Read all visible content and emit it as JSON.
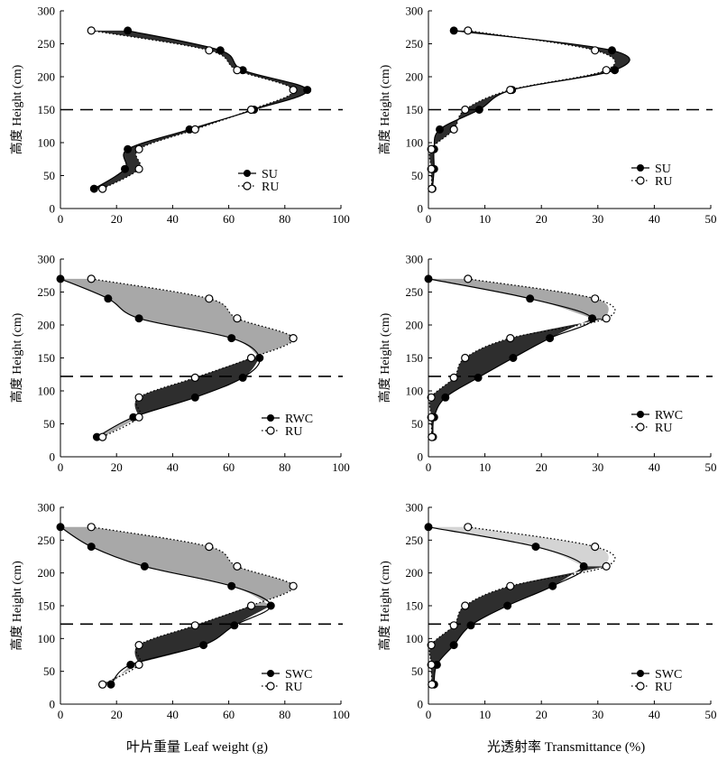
{
  "figure": {
    "xlabel_left": "叶片重量 Leaf weight (g)",
    "xlabel_right": "光透射率 Transmittance (%)"
  },
  "chart_data": [
    {
      "type": "line",
      "id": "lw-su",
      "ylabel": "高度 Height (cm)",
      "xlim": [
        0,
        100
      ],
      "ylim": [
        0,
        300
      ],
      "xticks": [
        0,
        20,
        40,
        60,
        80,
        100
      ],
      "yticks": [
        0,
        50,
        100,
        150,
        200,
        250,
        300
      ],
      "hline": 150,
      "fill_color": "#2e2e2e",
      "series": [
        {
          "name": "SU",
          "marker": "filled",
          "line": "solid",
          "points": [
            [
              24,
              270
            ],
            [
              57,
              240
            ],
            [
              65,
              210
            ],
            [
              88,
              180
            ],
            [
              69,
              150
            ],
            [
              46,
              120
            ],
            [
              24,
              90
            ],
            [
              23,
              60
            ],
            [
              12,
              30
            ]
          ]
        },
        {
          "name": "RU",
          "marker": "open",
          "line": "dotted",
          "points": [
            [
              11,
              270
            ],
            [
              53,
              240
            ],
            [
              63,
              210
            ],
            [
              83,
              180
            ],
            [
              68,
              150
            ],
            [
              48,
              120
            ],
            [
              28,
              90
            ],
            [
              28,
              60
            ],
            [
              15,
              30
            ]
          ]
        }
      ]
    },
    {
      "type": "line",
      "id": "tr-su",
      "ylabel": "高度 Height (cm)",
      "xlim": [
        0,
        50
      ],
      "ylim": [
        0,
        300
      ],
      "xticks": [
        0,
        10,
        20,
        30,
        40,
        50
      ],
      "yticks": [
        0,
        50,
        100,
        150,
        200,
        250,
        300
      ],
      "hline": 150,
      "fill_color": "#2e2e2e",
      "series": [
        {
          "name": "SU",
          "marker": "filled",
          "line": "solid",
          "points": [
            [
              4.5,
              270
            ],
            [
              32.5,
              240
            ],
            [
              33,
              210
            ],
            [
              14.8,
              180
            ],
            [
              9,
              150
            ],
            [
              2,
              120
            ],
            [
              1,
              90
            ],
            [
              1,
              60
            ],
            [
              0.7,
              30
            ]
          ]
        },
        {
          "name": "RU",
          "marker": "open",
          "line": "dotted",
          "points": [
            [
              7,
              270
            ],
            [
              29.5,
              240
            ],
            [
              31.5,
              210
            ],
            [
              14.5,
              180
            ],
            [
              6.5,
              150
            ],
            [
              4.5,
              120
            ],
            [
              0.5,
              90
            ],
            [
              0.5,
              60
            ],
            [
              0.6,
              30
            ]
          ]
        }
      ]
    },
    {
      "type": "line",
      "id": "lw-rwc",
      "ylabel": "高度 Height (cm)",
      "xlim": [
        0,
        100
      ],
      "ylim": [
        0,
        300
      ],
      "xticks": [
        0,
        20,
        40,
        60,
        80,
        100
      ],
      "yticks": [
        0,
        50,
        100,
        150,
        200,
        250,
        300
      ],
      "hline": 122,
      "fill_color": "#2e2e2e",
      "series": [
        {
          "name": "RWC",
          "marker": "filled",
          "line": "solid",
          "points": [
            [
              0,
              270
            ],
            [
              17,
              240
            ],
            [
              28,
              210
            ],
            [
              61,
              180
            ],
            [
              71,
              150
            ],
            [
              65,
              120
            ],
            [
              48,
              90
            ],
            [
              26,
              60
            ],
            [
              13,
              30
            ]
          ]
        },
        {
          "name": "RU",
          "marker": "open",
          "line": "dotted",
          "points": [
            [
              11,
              270
            ],
            [
              53,
              240
            ],
            [
              63,
              210
            ],
            [
              83,
              180
            ],
            [
              68,
              150
            ],
            [
              48,
              120
            ],
            [
              28,
              90
            ],
            [
              28,
              60
            ],
            [
              15,
              30
            ]
          ]
        }
      ]
    },
    {
      "type": "line",
      "id": "tr-rwc",
      "ylabel": "高度 Height (cm)",
      "xlim": [
        0,
        50
      ],
      "ylim": [
        0,
        300
      ],
      "xticks": [
        0,
        10,
        20,
        30,
        40,
        50
      ],
      "yticks": [
        0,
        50,
        100,
        150,
        200,
        250,
        300
      ],
      "hline": 122,
      "fill_color": "#2e2e2e",
      "series": [
        {
          "name": "RWC",
          "marker": "filled",
          "line": "solid",
          "points": [
            [
              0,
              270
            ],
            [
              18,
              240
            ],
            [
              29,
              210
            ],
            [
              21.5,
              180
            ],
            [
              15,
              150
            ],
            [
              8.8,
              120
            ],
            [
              3,
              90
            ],
            [
              1,
              60
            ],
            [
              0.8,
              30
            ]
          ]
        },
        {
          "name": "RU",
          "marker": "open",
          "line": "dotted",
          "points": [
            [
              7,
              270
            ],
            [
              29.5,
              240
            ],
            [
              31.5,
              210
            ],
            [
              14.5,
              180
            ],
            [
              6.5,
              150
            ],
            [
              4.5,
              120
            ],
            [
              0.5,
              90
            ],
            [
              0.5,
              60
            ],
            [
              0.6,
              30
            ]
          ]
        }
      ]
    },
    {
      "type": "line",
      "id": "lw-swc",
      "ylabel": "高度 Height (cm)",
      "xlim": [
        0,
        100
      ],
      "ylim": [
        0,
        300
      ],
      "xticks": [
        0,
        20,
        40,
        60,
        80,
        100
      ],
      "yticks": [
        0,
        50,
        100,
        150,
        200,
        250,
        300
      ],
      "hline": 122,
      "fill_color": "#2e2e2e",
      "series": [
        {
          "name": "SWC",
          "marker": "filled",
          "line": "solid",
          "points": [
            [
              0,
              270
            ],
            [
              11,
              240
            ],
            [
              30,
              210
            ],
            [
              61,
              180
            ],
            [
              75,
              150
            ],
            [
              62,
              120
            ],
            [
              51,
              90
            ],
            [
              25,
              60
            ],
            [
              18,
              30
            ]
          ]
        },
        {
          "name": "RU",
          "marker": "open",
          "line": "dotted",
          "points": [
            [
              11,
              270
            ],
            [
              53,
              240
            ],
            [
              63,
              210
            ],
            [
              83,
              180
            ],
            [
              68,
              150
            ],
            [
              48,
              120
            ],
            [
              28,
              90
            ],
            [
              28,
              60
            ],
            [
              15,
              30
            ]
          ]
        }
      ]
    },
    {
      "type": "line",
      "id": "tr-swc",
      "ylabel": "高度 Height (cm)",
      "xlim": [
        0,
        50
      ],
      "ylim": [
        0,
        300
      ],
      "xticks": [
        0,
        10,
        20,
        30,
        40,
        50
      ],
      "yticks": [
        0,
        50,
        100,
        150,
        200,
        250,
        300
      ],
      "hline": 122,
      "fill_color": "#2e2e2e",
      "series": [
        {
          "name": "SWC",
          "marker": "filled",
          "line": "solid",
          "points": [
            [
              0,
              270
            ],
            [
              19,
              240
            ],
            [
              27.5,
              210
            ],
            [
              22,
              180
            ],
            [
              14,
              150
            ],
            [
              7.5,
              120
            ],
            [
              4.5,
              90
            ],
            [
              1.5,
              60
            ],
            [
              1,
              30
            ]
          ]
        },
        {
          "name": "RU",
          "marker": "open",
          "line": "dotted",
          "points": [
            [
              7,
              270
            ],
            [
              29.5,
              240
            ],
            [
              31.5,
              210
            ],
            [
              14.5,
              180
            ],
            [
              6.5,
              150
            ],
            [
              4.5,
              120
            ],
            [
              0.5,
              90
            ],
            [
              0.5,
              60
            ],
            [
              0.6,
              30
            ]
          ]
        }
      ]
    }
  ]
}
